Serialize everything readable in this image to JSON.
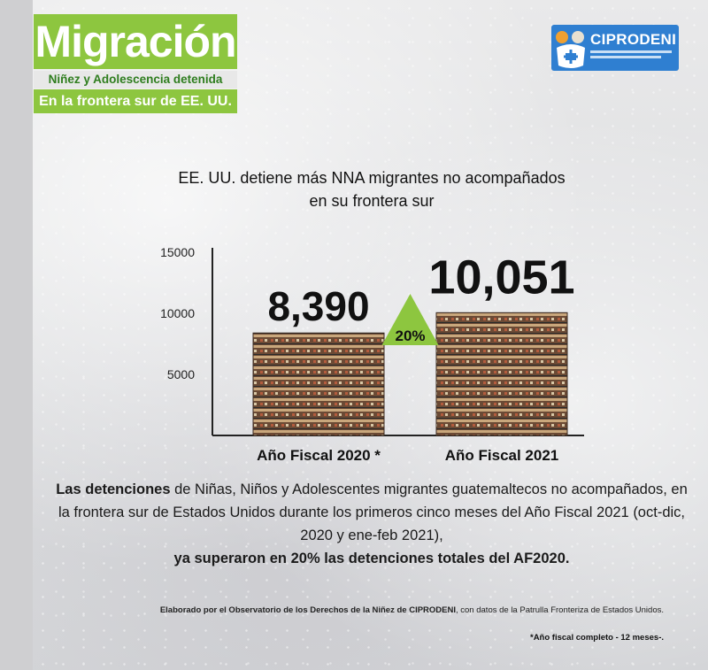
{
  "header": {
    "title": "Migración",
    "subtitle_line1": "Niñez y Adolescencia detenida",
    "subtitle_line2": "En la frontera sur de EE. UU."
  },
  "logo": {
    "name": "CIPRODENI"
  },
  "headline": {
    "line1": "EE. UU. detiene más NNA migrantes no acompañados",
    "line2": "en su frontera sur"
  },
  "chart_data": {
    "type": "bar",
    "categories": [
      "Año Fiscal 2020 *",
      "Año Fiscal 2021"
    ],
    "values": [
      8390,
      10051
    ],
    "data_labels": [
      "8,390",
      "10,051"
    ],
    "yticks": [
      5000,
      10000,
      15000
    ],
    "ytick_labels": [
      "5000",
      "10000",
      "15000"
    ],
    "ylim": [
      0,
      15000
    ],
    "title": "",
    "xlabel": "",
    "ylabel": "",
    "grid": false,
    "annotation": {
      "text": "20%",
      "shape": "triangle-up",
      "color": "#8dc63f"
    },
    "bar_color": "#6b4a35"
  },
  "description": {
    "bold1": "Las detenciones",
    "text1": " de Niñas, Niños y Adolescentes migrantes guatemaltecos no acompañados, en la frontera sur de Estados Unidos durante los primeros cinco meses del Año Fiscal 2021 (oct-dic, 2020 y ene-feb 2021),",
    "bold2": "ya superaron en 20% las detenciones totales del AF2020."
  },
  "credit": {
    "bold": "Elaborado por el Observatorio de los Derechos de la Niñez de CIPRODENI",
    "text": ", con datos de la Patrulla Fronteriza de Estados Unidos.",
    "note": "*Año fiscal completo - 12 meses-."
  },
  "colors": {
    "brand_green": "#8dc63f",
    "logo_blue": "#2f7fd1",
    "subtitle_green": "#2e7d1e"
  }
}
